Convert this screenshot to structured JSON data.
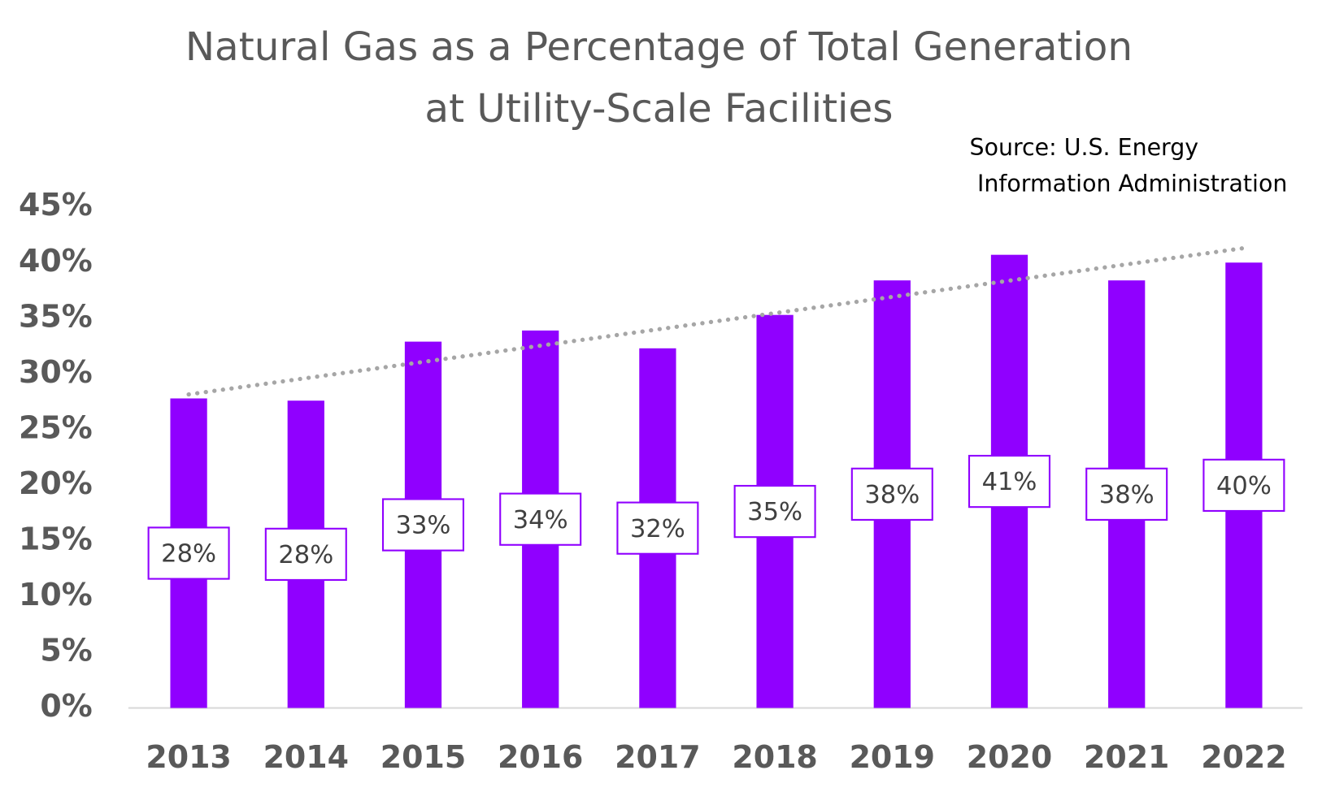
{
  "chart_data": {
    "type": "bar",
    "title": [
      "Natural Gas as a Percentage of Total Generation",
      "at Utility-Scale Facilities"
    ],
    "source": [
      "Source: U.S. Energy",
      "Information Administration"
    ],
    "categories": [
      "2013",
      "2014",
      "2015",
      "2016",
      "2017",
      "2018",
      "2019",
      "2020",
      "2021",
      "2022"
    ],
    "values": [
      27.8,
      27.6,
      32.9,
      33.9,
      32.3,
      35.3,
      38.4,
      40.7,
      38.4,
      40.0
    ],
    "value_labels": [
      "28%",
      "28%",
      "33%",
      "34%",
      "32%",
      "35%",
      "38%",
      "41%",
      "38%",
      "40%"
    ],
    "color": "#9000ff",
    "trendline": true,
    "ylim": [
      0,
      45
    ],
    "yticks": [
      {
        "value": 0,
        "label": "0%"
      },
      {
        "value": 5,
        "label": "5%"
      },
      {
        "value": 10,
        "label": "10%"
      },
      {
        "value": 15,
        "label": "15%"
      },
      {
        "value": 20,
        "label": "20%"
      },
      {
        "value": 25,
        "label": "25%"
      },
      {
        "value": 30,
        "label": "30%"
      },
      {
        "value": 35,
        "label": "35%"
      },
      {
        "value": 40,
        "label": "40%"
      },
      {
        "value": 45,
        "label": "45%"
      }
    ],
    "grid": false
  }
}
